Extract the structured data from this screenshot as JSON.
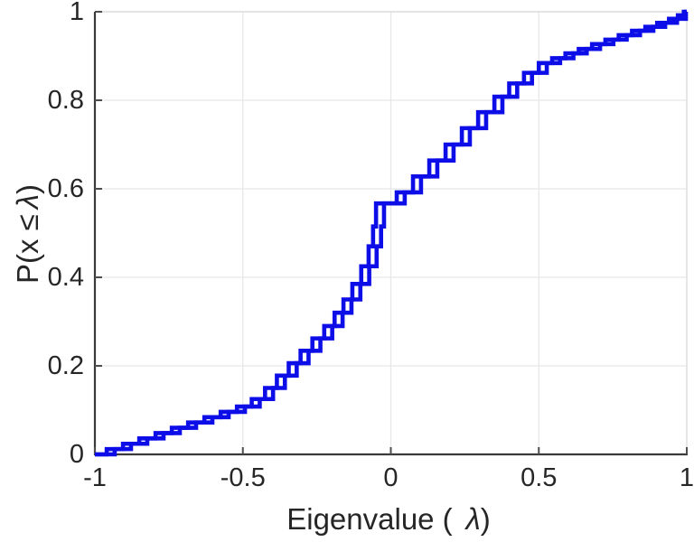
{
  "chart_data": {
    "type": "line",
    "subtype": "ecdf-stairstep",
    "title": "",
    "xlabel": {
      "prefix": "Eigenvalue (",
      "symbol": "λ",
      "suffix": ")"
    },
    "ylabel": {
      "prefix": "P(x ≤",
      "symbol": "λ",
      "suffix": ")"
    },
    "xlim": [
      -1,
      1
    ],
    "ylim": [
      0,
      1
    ],
    "grid": true,
    "legend": "none",
    "x_ticks": {
      "values": [
        -1,
        -0.5,
        0,
        0.5,
        1
      ],
      "labels": [
        "-1",
        "-0.5",
        "0",
        "0.5",
        "1"
      ]
    },
    "y_ticks": {
      "values": [
        0,
        0.2,
        0.4,
        0.6,
        0.8,
        1
      ],
      "labels": [
        "0",
        "0.2",
        "0.4",
        "0.6",
        "0.8",
        "1"
      ]
    },
    "colors": {
      "line": "#0d0de8",
      "grid": "#e7e7e7",
      "axis_dark": "#3a3a3a",
      "axis_light": "#dcdcdc",
      "tick": "#4d4d4d",
      "text": "#262626"
    },
    "step_points": [
      [
        -0.96,
        0.012
      ],
      [
        -0.905,
        0.024
      ],
      [
        -0.85,
        0.036
      ],
      [
        -0.795,
        0.048
      ],
      [
        -0.74,
        0.06
      ],
      [
        -0.685,
        0.072
      ],
      [
        -0.63,
        0.084
      ],
      [
        -0.575,
        0.096
      ],
      [
        -0.52,
        0.108
      ],
      [
        -0.47,
        0.125
      ],
      [
        -0.425,
        0.15
      ],
      [
        -0.385,
        0.178
      ],
      [
        -0.345,
        0.206
      ],
      [
        -0.305,
        0.234
      ],
      [
        -0.265,
        0.262
      ],
      [
        -0.225,
        0.29
      ],
      [
        -0.19,
        0.32
      ],
      [
        -0.16,
        0.35
      ],
      [
        -0.13,
        0.385
      ],
      [
        -0.1,
        0.425
      ],
      [
        -0.075,
        0.47
      ],
      [
        -0.06,
        0.515
      ],
      [
        -0.05,
        0.567
      ],
      [
        0.02,
        0.592
      ],
      [
        0.075,
        0.628
      ],
      [
        0.13,
        0.664
      ],
      [
        0.185,
        0.7
      ],
      [
        0.24,
        0.737
      ],
      [
        0.295,
        0.773
      ],
      [
        0.35,
        0.808
      ],
      [
        0.4,
        0.838
      ],
      [
        0.45,
        0.862
      ],
      [
        0.5,
        0.884
      ],
      [
        0.545,
        0.895
      ],
      [
        0.59,
        0.906
      ],
      [
        0.635,
        0.916
      ],
      [
        0.68,
        0.927
      ],
      [
        0.725,
        0.937
      ],
      [
        0.77,
        0.947
      ],
      [
        0.815,
        0.957
      ],
      [
        0.86,
        0.966
      ],
      [
        0.9,
        0.975
      ],
      [
        0.94,
        0.984
      ],
      [
        0.97,
        0.992
      ],
      [
        0.99,
        1.0
      ]
    ],
    "series": [
      {
        "name": "ecdf-series-1",
        "x_offset": 0
      },
      {
        "name": "ecdf-series-2",
        "x_offset": 0.027
      }
    ]
  }
}
